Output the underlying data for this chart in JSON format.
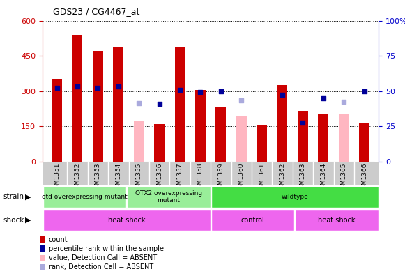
{
  "title": "GDS23 / CG4467_at",
  "samples": [
    "GSM1351",
    "GSM1352",
    "GSM1353",
    "GSM1354",
    "GSM1355",
    "GSM1356",
    "GSM1357",
    "GSM1358",
    "GSM1359",
    "GSM1360",
    "GSM1361",
    "GSM1362",
    "GSM1363",
    "GSM1364",
    "GSM1365",
    "GSM1366"
  ],
  "red_bars": [
    350,
    540,
    470,
    490,
    0,
    160,
    490,
    305,
    230,
    0,
    155,
    325,
    215,
    200,
    0,
    165
  ],
  "pink_bars": [
    0,
    0,
    0,
    0,
    170,
    0,
    0,
    0,
    0,
    195,
    0,
    0,
    0,
    0,
    205,
    0
  ],
  "blue_squares": [
    315,
    320,
    315,
    320,
    0,
    245,
    305,
    295,
    300,
    0,
    0,
    285,
    165,
    270,
    0,
    300
  ],
  "light_blue_sq": [
    0,
    0,
    0,
    0,
    250,
    0,
    0,
    0,
    0,
    260,
    0,
    0,
    0,
    0,
    255,
    0
  ],
  "ylim_left": [
    0,
    600
  ],
  "ylim_right": [
    0,
    100
  ],
  "yticks_left": [
    0,
    150,
    300,
    450,
    600
  ],
  "yticks_right": [
    0,
    25,
    50,
    75,
    100
  ],
  "bar_color_red": "#CC0000",
  "bar_color_pink": "#FFB6C1",
  "sq_color_blue": "#000099",
  "sq_color_lblue": "#AAAADD",
  "col_left": "#CC0000",
  "col_right": "#0000CC",
  "strain_configs": [
    {
      "label": "otd overexpressing mutant",
      "start": 0,
      "end": 4,
      "color": "#99EE99"
    },
    {
      "label": "OTX2 overexpressing\nmutant",
      "start": 4,
      "end": 8,
      "color": "#99EE99"
    },
    {
      "label": "wildtype",
      "start": 8,
      "end": 16,
      "color": "#44DD44"
    }
  ],
  "shock_configs": [
    {
      "label": "heat shock",
      "start": 0,
      "end": 8,
      "color": "#EE66EE"
    },
    {
      "label": "control",
      "start": 8,
      "end": 12,
      "color": "#EE66EE"
    },
    {
      "label": "heat shock",
      "start": 12,
      "end": 16,
      "color": "#EE66EE"
    }
  ],
  "legend_labels": [
    "count",
    "percentile rank within the sample",
    "value, Detection Call = ABSENT",
    "rank, Detection Call = ABSENT"
  ],
  "legend_colors": [
    "#CC0000",
    "#000099",
    "#FFB6C1",
    "#AAAADD"
  ]
}
